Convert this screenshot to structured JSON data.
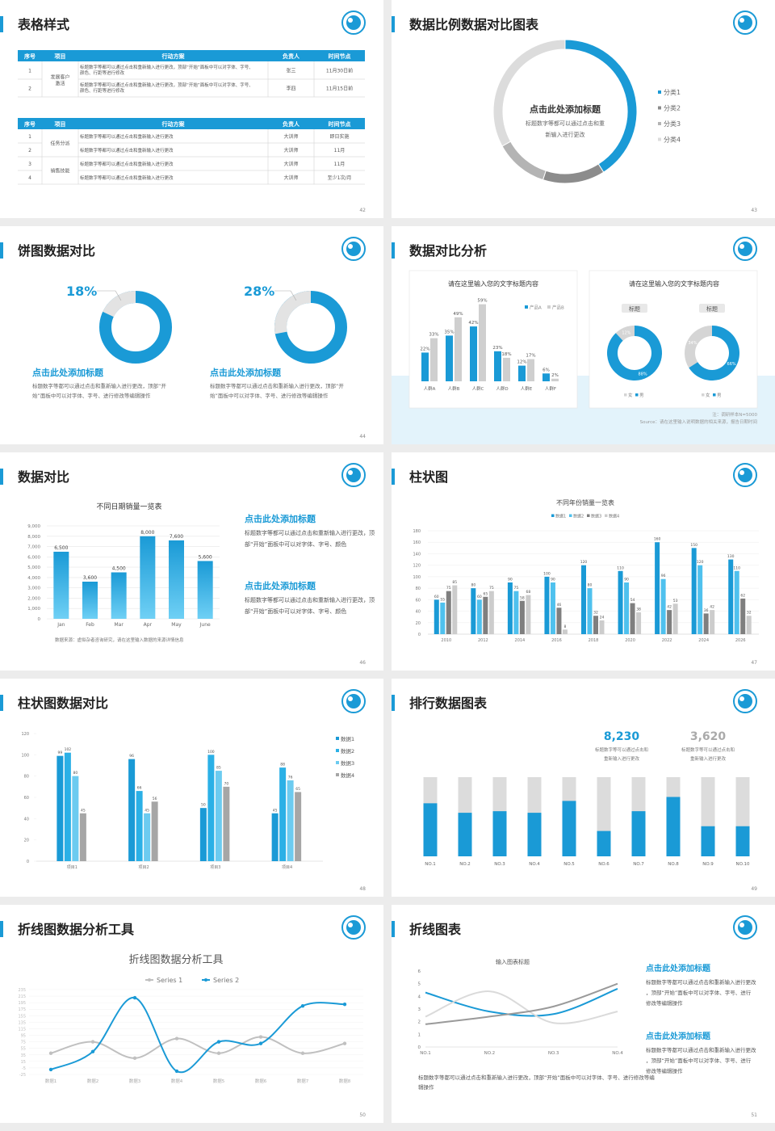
{
  "slides": [
    {
      "title": "表格样式",
      "page": "42",
      "tables": [
        {
          "header": [
            "序号",
            "项目",
            "行动方案",
            "负责人",
            "时间节点"
          ],
          "rows": [
            [
              "1",
              "发展客户激活",
              "标题数字等都可以通过点击和重新输入进行更改，顶部“开始”面板中可以对字体、字号、颜色、行距等进行修改",
              "张三",
              "11月30日前"
            ],
            [
              "2",
              null,
              "标题数字等都可以通过点击和重新输入进行更改，顶部“开始”面板中可以对字体、字号、颜色、行距等进行修改",
              "李四",
              "11月15日前"
            ]
          ]
        },
        {
          "header": [
            "序号",
            "项目",
            "行动方案",
            "负责人",
            "时间节点"
          ],
          "rows": [
            [
              "1",
              "任务分派",
              "标题数字等都可以通过点击和重新输入进行更改",
              "大训师",
              "即日实施"
            ],
            [
              "2",
              null,
              "标题数字等都可以通过点击和重新输入进行更改",
              "大训师",
              "11月"
            ],
            [
              "3",
              "销售技能",
              "标题数字等都可以通过点击和重新输入进行更改",
              "大训师",
              "11月"
            ],
            [
              "4",
              null,
              "标题数字等都可以通过点击和重新输入进行更改",
              "大训师",
              "至少1次/月"
            ]
          ]
        }
      ]
    },
    {
      "title": "数据比例数据对比图表",
      "page": "43",
      "chart_data": {
        "type": "donut",
        "center_title": "点击此处添加标题",
        "center_text": "标题数字等都可以通过点击和重新输入进行更改",
        "categories": [
          "分类1",
          "分类2",
          "分类3",
          "分类4"
        ],
        "values": [
          41,
          14,
          12,
          33
        ],
        "colors": [
          "#1a9ad6",
          "#8c8c8c",
          "#b4b4b4",
          "#dcdcdc"
        ]
      }
    },
    {
      "title": "饼图数据对比",
      "page": "44",
      "items": [
        {
          "value": 18,
          "value_label": "18%",
          "heading": "点击此处添加标题",
          "text": "标题数字等都可以通过点击和重新输入进行更改，顶部“开始”面板中可以对字体、字号、进行修改等编辑操作"
        },
        {
          "value": 28,
          "value_label": "28%",
          "heading": "点击此处添加标题",
          "text": "标题数字等都可以通过点击和重新输入进行更改，顶部“开始”面板中可以对字体、字号、进行修改等编辑操作"
        }
      ]
    },
    {
      "title": "数据对比分析",
      "page": "45",
      "bar_chart": {
        "type": "bar",
        "title": "请在这里输入您的文字标题内容",
        "categories": [
          "人群A",
          "人群B",
          "人群C",
          "人群D",
          "人群E",
          "人群F"
        ],
        "ylim": [
          0,
          60
        ],
        "series": [
          {
            "name": "产品A",
            "color": "#1a9ad6",
            "values": [
              22,
              35,
              42,
              23,
              12,
              6
            ],
            "value_labels": [
              "22%",
              "35%",
              "42%",
              "23%",
              "12%",
              "6%"
            ]
          },
          {
            "name": "产品B",
            "color": "#cfcfcf",
            "values": [
              33,
              49,
              59,
              18,
              17,
              2
            ],
            "value_labels": [
              "33%",
              "49%",
              "59%",
              "18%",
              "17%",
              "2%"
            ]
          }
        ]
      },
      "donut_chart": {
        "type": "donut",
        "title": "请在这里输入您的文字标题内容",
        "categories": [
          "女",
          "男"
        ],
        "colors": [
          "#d5d5d5",
          "#1a9ad6"
        ],
        "donuts": [
          {
            "label": "标题",
            "values": [
              12,
              88
            ],
            "value_labels": [
              "12%",
              "88%"
            ]
          },
          {
            "label": "标题",
            "values": [
              34,
              66
            ],
            "value_labels": [
              "34%",
              "66%"
            ]
          }
        ]
      },
      "note": "注：调研样本N=5000",
      "source": "Source：请在这里输入说明数据的相关来源，报告日期时间"
    },
    {
      "title": "数据对比",
      "page": "46",
      "chart_data": {
        "type": "bar",
        "title": "不同日期销量一览表",
        "categories": [
          "Jan",
          "Feb",
          "Mar",
          "Apr",
          "May",
          "June"
        ],
        "values": [
          6500,
          3600,
          4500,
          8000,
          7600,
          5600
        ],
        "value_labels": [
          "6,500",
          "3,600",
          "4,500",
          "8,000",
          "7,600",
          "5,600"
        ],
        "ylim": [
          0,
          9000
        ],
        "yticks": [
          0,
          {
            "value": 1000,
            "label": "1,000"
          },
          {
            "value": 2000,
            "label": "2,000"
          },
          {
            "value": 3000,
            "label": "3,000"
          },
          {
            "value": 4000,
            "label": "4,000"
          },
          {
            "value": 5000,
            "label": "5,000"
          },
          {
            "value": 6000,
            "label": "6,000"
          },
          {
            "value": 7000,
            "label": "7,000"
          },
          {
            "value": 8000,
            "label": "8,000"
          },
          {
            "value": 9000,
            "label": "9,000"
          }
        ],
        "grid": true,
        "color": "#1a9ad6",
        "source": "数据来源：虚拟杂者咨询研究，请在这里输入数据的来源详情信息"
      },
      "blocks": [
        {
          "heading": "点击此处添加标题",
          "text": "标题数字等都可以通过点击和重新输入进行更改，顶部“开始”面板中可以对字体、字号、颜色"
        },
        {
          "heading": "点击此处添加标题",
          "text": "标题数字等都可以通过点击和重新输入进行更改，顶部“开始”面板中可以对字体、字号、颜色"
        }
      ]
    },
    {
      "title": "柱状图",
      "page": "47",
      "chart_data": {
        "type": "bar",
        "title": "不同年份销量一览表",
        "categories": [
          "2010",
          "2012",
          "2014",
          "2016",
          "2018",
          "2020",
          "2022",
          "2024",
          "2026"
        ],
        "ylim": [
          0,
          180
        ],
        "yticks": [
          0,
          20,
          40,
          60,
          80,
          100,
          120,
          140,
          160,
          180
        ],
        "grid": true,
        "series": [
          {
            "name": "数据1",
            "color": "#1a9ad6",
            "values": [
              60,
              80,
              90,
              100,
              120,
              110,
              160,
              150,
              130
            ]
          },
          {
            "name": "数据2",
            "color": "#4fc1ee",
            "values": [
              55,
              60,
              75,
              90,
              80,
              90,
              96,
              120,
              110
            ]
          },
          {
            "name": "数据3",
            "color": "#7f7f7f",
            "values": [
              75,
              65,
              58,
              46,
              32,
              54,
              42,
              36,
              62
            ]
          },
          {
            "name": "数据4",
            "color": "#cccccc",
            "values": [
              85,
              75,
              68,
              8,
              24,
              38,
              53,
              42,
              32
            ]
          }
        ]
      }
    },
    {
      "title": "柱状图数据对比",
      "page": "48",
      "chart_data": {
        "type": "bar",
        "categories": [
          "项目1",
          "项目2",
          "项目3",
          "项目4"
        ],
        "ylim": [
          0,
          120
        ],
        "yticks": [
          0,
          20,
          40,
          60,
          80,
          100,
          120
        ],
        "series": [
          {
            "name": "数据1",
            "color": "#1a9ad6",
            "values": [
              99,
              96,
              50,
              45
            ]
          },
          {
            "name": "数据2",
            "color": "#2bb0e6",
            "values": [
              102,
              66,
              100,
              88
            ]
          },
          {
            "name": "数据3",
            "color": "#6ccbf0",
            "values": [
              80,
              45,
              85,
              76
            ]
          },
          {
            "name": "数据4",
            "color": "#a6a6a6",
            "values": [
              45,
              56,
              70,
              65
            ]
          }
        ]
      }
    },
    {
      "title": "排行数据图表",
      "page": "49",
      "stats": [
        {
          "value": "8,230",
          "text": "标题数字等可以通过点击和重新输入进行更改"
        },
        {
          "value": "3,620",
          "text": "标题数字等可以通过点击和重新输入进行更改"
        }
      ],
      "chart_data": {
        "type": "bar",
        "categories": [
          "NO.1",
          "NO.2",
          "NO.3",
          "NO.4",
          "NO.5",
          "NO.6",
          "NO.7",
          "NO.8",
          "NO.9",
          "NO.10"
        ],
        "values": [
          67,
          55,
          57,
          55,
          70,
          32,
          57,
          75,
          38,
          38
        ],
        "ylim": [
          0,
          100
        ],
        "color": "#1a9ad6",
        "track_color": "#dcdcdc"
      }
    },
    {
      "title": "折线图数据分析工具",
      "page": "50",
      "chart_data": {
        "type": "line",
        "title": "折线图数据分析工具",
        "categories": [
          "数据1",
          "数据2",
          "数据3",
          "数据4",
          "数据5",
          "数据6",
          "数据7",
          "数据8"
        ],
        "ylim": [
          -25,
          235
        ],
        "yticks": [
          235,
          215,
          195,
          175,
          155,
          135,
          115,
          95,
          75,
          55,
          35,
          15,
          -5,
          -25
        ],
        "series": [
          {
            "name": "Series 1",
            "color": "#c0c0c0",
            "values": [
              40,
              75,
              25,
              85,
              40,
              90,
              40,
              70
            ]
          },
          {
            "name": "Series 2",
            "color": "#1a9ad6",
            "values": [
              -10,
              45,
              210,
              -15,
              75,
              70,
              185,
              190
            ]
          }
        ]
      }
    },
    {
      "title": "折线图表",
      "page": "51",
      "chart_data": {
        "type": "line",
        "title": "输入图表标题",
        "categories": [
          "NO.1",
          "NO.2",
          "NO.3",
          "NO.4"
        ],
        "ylim": [
          0,
          6
        ],
        "yticks": [
          0,
          1,
          2,
          3,
          4,
          5,
          6
        ],
        "series": [
          {
            "color": "#1a9ad6",
            "values": [
              4.3,
              2.8,
              2.6,
              4.6
            ]
          },
          {
            "color": "#dadada",
            "values": [
              2.4,
              4.4,
              1.9,
              2.8
            ]
          },
          {
            "color": "#9a9a9a",
            "values": [
              1.8,
              2.4,
              3.2,
              5.0
            ]
          }
        ]
      },
      "text": "标题数字等都可以通过点击和重新输入进行更改，顶部“开始”面板中可以对字体、字号、进行修改等编辑操作",
      "blocks": [
        {
          "heading": "点击此处添加标题",
          "text": "标题数字等都可以通过点击和重新输入进行更改，顶部“开始”面板中可以对字体、字号、进行修改等编辑操作"
        },
        {
          "heading": "点击此处添加标题",
          "text": "标题数字等都可以通过点击和重新输入进行更改，顶部“开始”面板中可以对字体、字号、进行修改等编辑操作"
        }
      ]
    }
  ]
}
